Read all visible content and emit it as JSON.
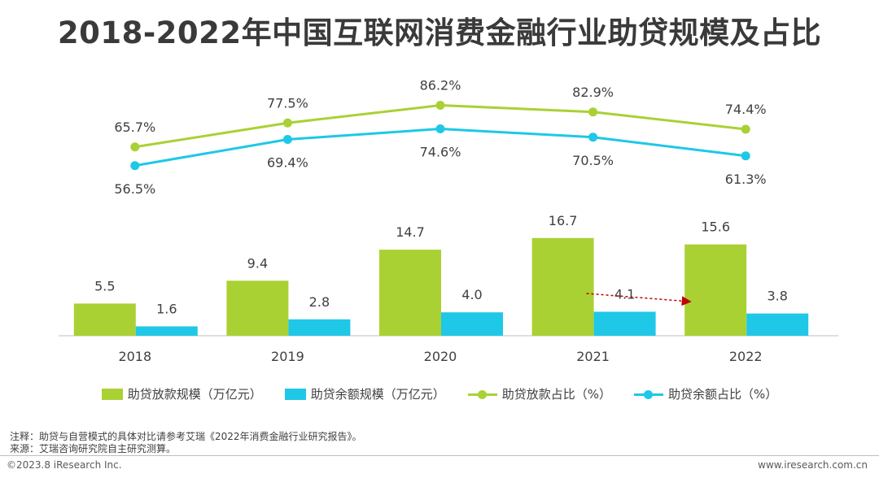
{
  "title": "2018-2022年中国互联网消费金融行业助贷规模及占比",
  "colors": {
    "green": "#a9d134",
    "blue": "#1ec8e6",
    "arrow": "#c00000",
    "axis": "#bfbfbf"
  },
  "legend": {
    "bar1": "助贷放款规模（万亿元）",
    "bar2": "助贷余额规模（万亿元）",
    "line1": "助贷放款占比（%）",
    "line2": "助贷余额占比（%）"
  },
  "chart_data": {
    "type": "bar",
    "categories": [
      "2018",
      "2019",
      "2020",
      "2021",
      "2022"
    ],
    "series": [
      {
        "name": "助贷放款规模（万亿元）",
        "type": "bar",
        "values": [
          5.5,
          9.4,
          14.7,
          16.7,
          15.6
        ],
        "labels": [
          "5.5",
          "9.4",
          "14.7",
          "16.7",
          "15.6"
        ]
      },
      {
        "name": "助贷余额规模（万亿元）",
        "type": "bar",
        "values": [
          1.6,
          2.8,
          4.0,
          4.1,
          3.8
        ],
        "labels": [
          "1.6",
          "2.8",
          "4.0",
          "4.1",
          "3.8"
        ]
      },
      {
        "name": "助贷放款占比（%）",
        "type": "line",
        "values": [
          65.7,
          77.5,
          86.2,
          82.9,
          74.4
        ],
        "labels": [
          "65.7%",
          "77.5%",
          "86.2%",
          "82.9%",
          "74.4%"
        ]
      },
      {
        "name": "助贷余额占比（%）",
        "type": "line",
        "values": [
          56.5,
          69.4,
          74.6,
          70.5,
          61.3
        ],
        "labels": [
          "56.5%",
          "69.4%",
          "74.6%",
          "70.5%",
          "61.3%"
        ]
      }
    ],
    "bar_ylim": [
      0,
      20
    ],
    "line_ylim": [
      50,
      90
    ],
    "annotation": "arrow from 2021 放款 bar toward 2022 (dashed red)"
  },
  "notes": {
    "note": "注释：助贷与自营模式的具体对比请参考艾瑞《2022年消费金融行业研究报告》。",
    "source": "来源：艾瑞咨询研究院自主研究测算。"
  },
  "footer": {
    "copyright": "©2023.8 iResearch Inc.",
    "website": "www.iresearch.com.cn"
  }
}
